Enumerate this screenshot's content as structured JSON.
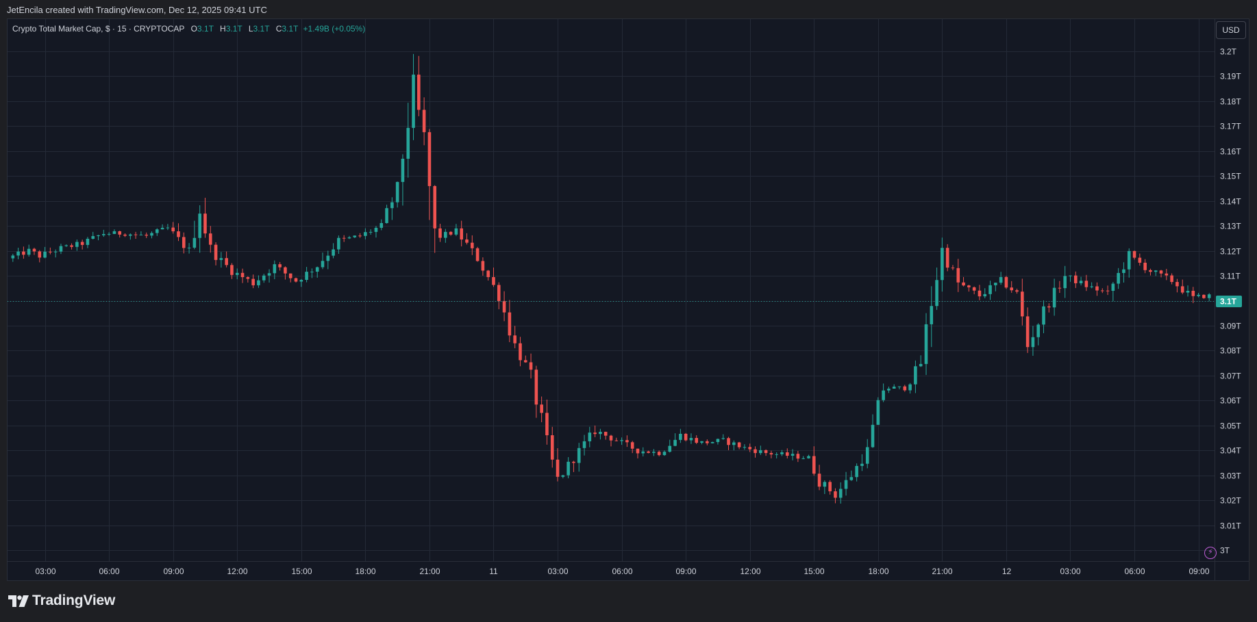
{
  "header": {
    "caption": "JetEncila created with TradingView.com, Dec 12, 2025 09:41 UTC"
  },
  "legend": {
    "symbol": "Crypto Total Market Cap, $ · 15 · CRYPTOCAP",
    "o_label": "O",
    "o_value": "3.1T",
    "h_label": "H",
    "h_value": "3.1T",
    "l_label": "L",
    "l_value": "3.1T",
    "c_label": "C",
    "c_value": "3.1T",
    "change": "+1.49B (+0.05%)"
  },
  "currency": "USD",
  "price_tag": "3.1T",
  "icons": {
    "alert": "bolt-icon",
    "logo": "tradingview-logo-icon"
  },
  "colors": {
    "up": "#26a69a",
    "down": "#ef5350",
    "background": "#141823",
    "grid": "#242a37",
    "axis_text": "#d1d4dc",
    "price_line": "#26a69a"
  },
  "brand": {
    "name": "TradingView"
  },
  "chart_data": {
    "type": "candlestick",
    "interval_minutes": 15,
    "y_unit": "T",
    "ylim": [
      2.995,
      3.212
    ],
    "y_ticks": [
      3.0,
      3.01,
      3.02,
      3.03,
      3.04,
      3.05,
      3.06,
      3.07,
      3.08,
      3.09,
      3.1,
      3.11,
      3.12,
      3.13,
      3.14,
      3.15,
      3.16,
      3.17,
      3.18,
      3.19,
      3.2
    ],
    "y_tick_labels": [
      "3T",
      "3.01T",
      "3.02T",
      "3.03T",
      "3.04T",
      "3.05T",
      "3.06T",
      "3.07T",
      "3.08T",
      "3.09T",
      "3.1T",
      "3.11T",
      "3.12T",
      "3.13T",
      "3.14T",
      "3.15T",
      "3.16T",
      "3.17T",
      "3.18T",
      "3.19T",
      "3.2T"
    ],
    "x_start": "Dec 10 01:15",
    "x_end": "Dec 12 09:45",
    "x_ticks": [
      {
        "time": "Dec 10 03:00",
        "label": "03:00"
      },
      {
        "time": "Dec 10 06:00",
        "label": "06:00"
      },
      {
        "time": "Dec 10 09:00",
        "label": "09:00"
      },
      {
        "time": "Dec 10 12:00",
        "label": "12:00"
      },
      {
        "time": "Dec 10 15:00",
        "label": "15:00"
      },
      {
        "time": "Dec 10 18:00",
        "label": "18:00"
      },
      {
        "time": "Dec 10 21:00",
        "label": "21:00"
      },
      {
        "time": "Dec 11 00:00",
        "label": "11"
      },
      {
        "time": "Dec 11 03:00",
        "label": "03:00"
      },
      {
        "time": "Dec 11 06:00",
        "label": "06:00"
      },
      {
        "time": "Dec 11 09:00",
        "label": "09:00"
      },
      {
        "time": "Dec 11 12:00",
        "label": "12:00"
      },
      {
        "time": "Dec 11 15:00",
        "label": "15:00"
      },
      {
        "time": "Dec 11 18:00",
        "label": "18:00"
      },
      {
        "time": "Dec 11 21:00",
        "label": "21:00"
      },
      {
        "time": "Dec 12 00:00",
        "label": "12"
      },
      {
        "time": "Dec 12 03:00",
        "label": "03:00"
      },
      {
        "time": "Dec 12 06:00",
        "label": "06:00"
      },
      {
        "time": "Dec 12 09:00",
        "label": "09:00"
      }
    ],
    "current_price": 3.1,
    "grid": true,
    "path_note": "",
    "path": [
      [
        "Dec 10 01:30",
        3.117
      ],
      [
        "Dec 10 02:30",
        3.12
      ],
      [
        "Dec 10 03:00",
        3.118
      ],
      [
        "Dec 10 04:00",
        3.121
      ],
      [
        "Dec 10 05:00",
        3.123
      ],
      [
        "Dec 10 06:00",
        3.127
      ],
      [
        "Dec 10 07:00",
        3.127
      ],
      [
        "Dec 10 08:00",
        3.126
      ],
      [
        "Dec 10 09:00",
        3.129
      ],
      [
        "Dec 10 10:00",
        3.12
      ],
      [
        "Dec 10 10:30",
        3.137
      ],
      [
        "Dec 10 11:00",
        3.12
      ],
      [
        "Dec 10 12:00",
        3.112
      ],
      [
        "Dec 10 13:00",
        3.107
      ],
      [
        "Dec 10 14:00",
        3.114
      ],
      [
        "Dec 10 15:00",
        3.108
      ],
      [
        "Dec 10 16:00",
        3.114
      ],
      [
        "Dec 10 17:00",
        3.124
      ],
      [
        "Dec 10 18:00",
        3.126
      ],
      [
        "Dec 10 19:00",
        3.13
      ],
      [
        "Dec 10 19:45",
        3.145
      ],
      [
        "Dec 10 20:30",
        3.185
      ],
      [
        "Dec 10 21:00",
        3.165
      ],
      [
        "Dec 10 21:30",
        3.125
      ],
      [
        "Dec 10 22:30",
        3.128
      ],
      [
        "Dec 10 23:30",
        3.117
      ],
      [
        "Dec 11 00:30",
        3.102
      ],
      [
        "Dec 11 01:15",
        3.082
      ],
      [
        "Dec 11 02:00",
        3.07
      ],
      [
        "Dec 11 02:45",
        3.042
      ],
      [
        "Dec 11 03:15",
        3.028
      ],
      [
        "Dec 11 04:00",
        3.037
      ],
      [
        "Dec 11 05:00",
        3.048
      ],
      [
        "Dec 11 06:00",
        3.044
      ],
      [
        "Dec 11 07:00",
        3.04
      ],
      [
        "Dec 11 08:00",
        3.039
      ],
      [
        "Dec 11 09:00",
        3.046
      ],
      [
        "Dec 11 10:00",
        3.043
      ],
      [
        "Dec 11 11:00",
        3.044
      ],
      [
        "Dec 11 12:00",
        3.041
      ],
      [
        "Dec 11 13:00",
        3.039
      ],
      [
        "Dec 11 14:00",
        3.038
      ],
      [
        "Dec 11 15:00",
        3.037
      ],
      [
        "Dec 11 15:30",
        3.028
      ],
      [
        "Dec 11 16:15",
        3.022
      ],
      [
        "Dec 11 17:00",
        3.03
      ],
      [
        "Dec 11 17:45",
        3.04
      ],
      [
        "Dec 11 18:30",
        3.065
      ],
      [
        "Dec 11 19:30",
        3.065
      ],
      [
        "Dec 11 20:15",
        3.075
      ],
      [
        "Dec 11 20:45",
        3.1
      ],
      [
        "Dec 11 21:15",
        3.12
      ],
      [
        "Dec 11 22:00",
        3.107
      ],
      [
        "Dec 11 23:00",
        3.102
      ],
      [
        "Dec 12 00:00",
        3.108
      ],
      [
        "Dec 12 00:45",
        3.103
      ],
      [
        "Dec 12 01:15",
        3.082
      ],
      [
        "Dec 12 02:00",
        3.096
      ],
      [
        "Dec 12 03:00",
        3.11
      ],
      [
        "Dec 12 04:00",
        3.106
      ],
      [
        "Dec 12 05:00",
        3.103
      ],
      [
        "Dec 12 06:00",
        3.118
      ],
      [
        "Dec 12 07:00",
        3.112
      ],
      [
        "Dec 12 08:00",
        3.108
      ],
      [
        "Dec 12 09:00",
        3.101
      ],
      [
        "Dec 12 09:30",
        3.102
      ]
    ]
  }
}
